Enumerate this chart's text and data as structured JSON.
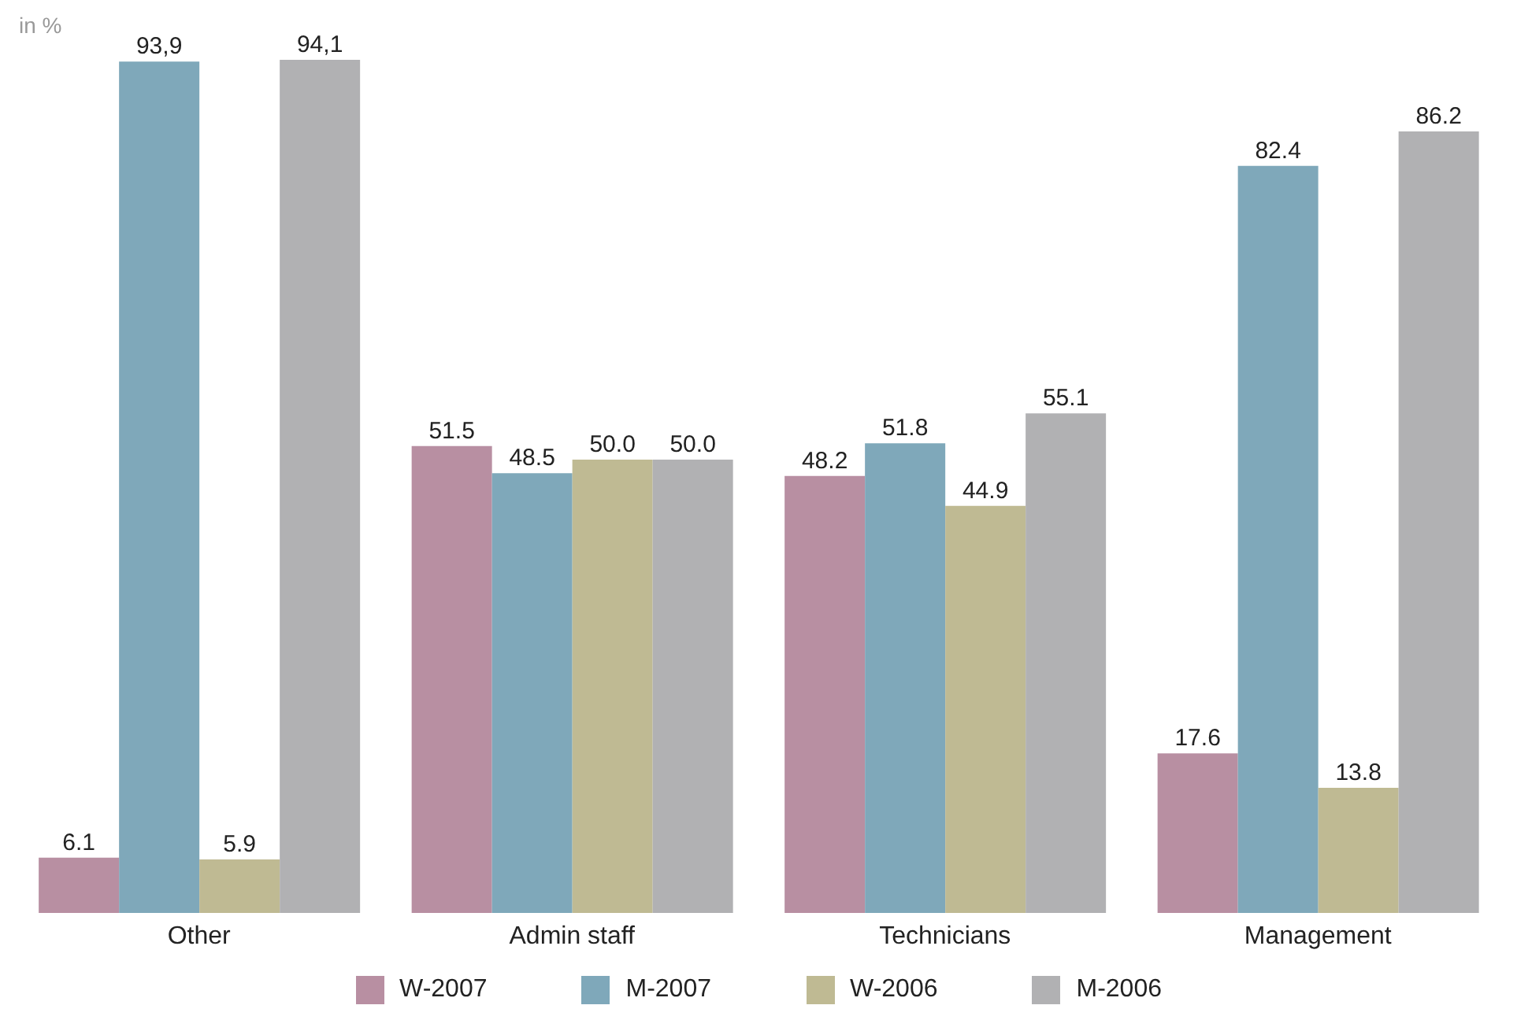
{
  "chart_data": {
    "type": "bar",
    "ylabel": "in %",
    "categories": [
      "Other",
      "Admin staff",
      "Technicians",
      "Management"
    ],
    "series": [
      {
        "name": "W-2007",
        "color": "#b88fa2",
        "values": [
          6.1,
          51.5,
          48.2,
          17.6
        ],
        "value_labels": [
          "6.1",
          "51.5",
          "48.2",
          "17.6"
        ]
      },
      {
        "name": "M-2007",
        "color": "#7fa8ba",
        "values": [
          93.9,
          48.5,
          51.8,
          82.4
        ],
        "value_labels": [
          "93,9",
          "48.5",
          "51.8",
          "82.4"
        ]
      },
      {
        "name": "W-2006",
        "color": "#bfba93",
        "values": [
          5.9,
          50.0,
          44.9,
          13.8
        ],
        "value_labels": [
          "5.9",
          "50.0",
          "44.9",
          "13.8"
        ]
      },
      {
        "name": "M-2006",
        "color": "#b1b1b3",
        "values": [
          94.1,
          50.0,
          55.1,
          86.2
        ],
        "value_labels": [
          "94,1",
          "50.0",
          "55.1",
          "86.2"
        ]
      }
    ],
    "legend": "bottom",
    "grid": false
  }
}
